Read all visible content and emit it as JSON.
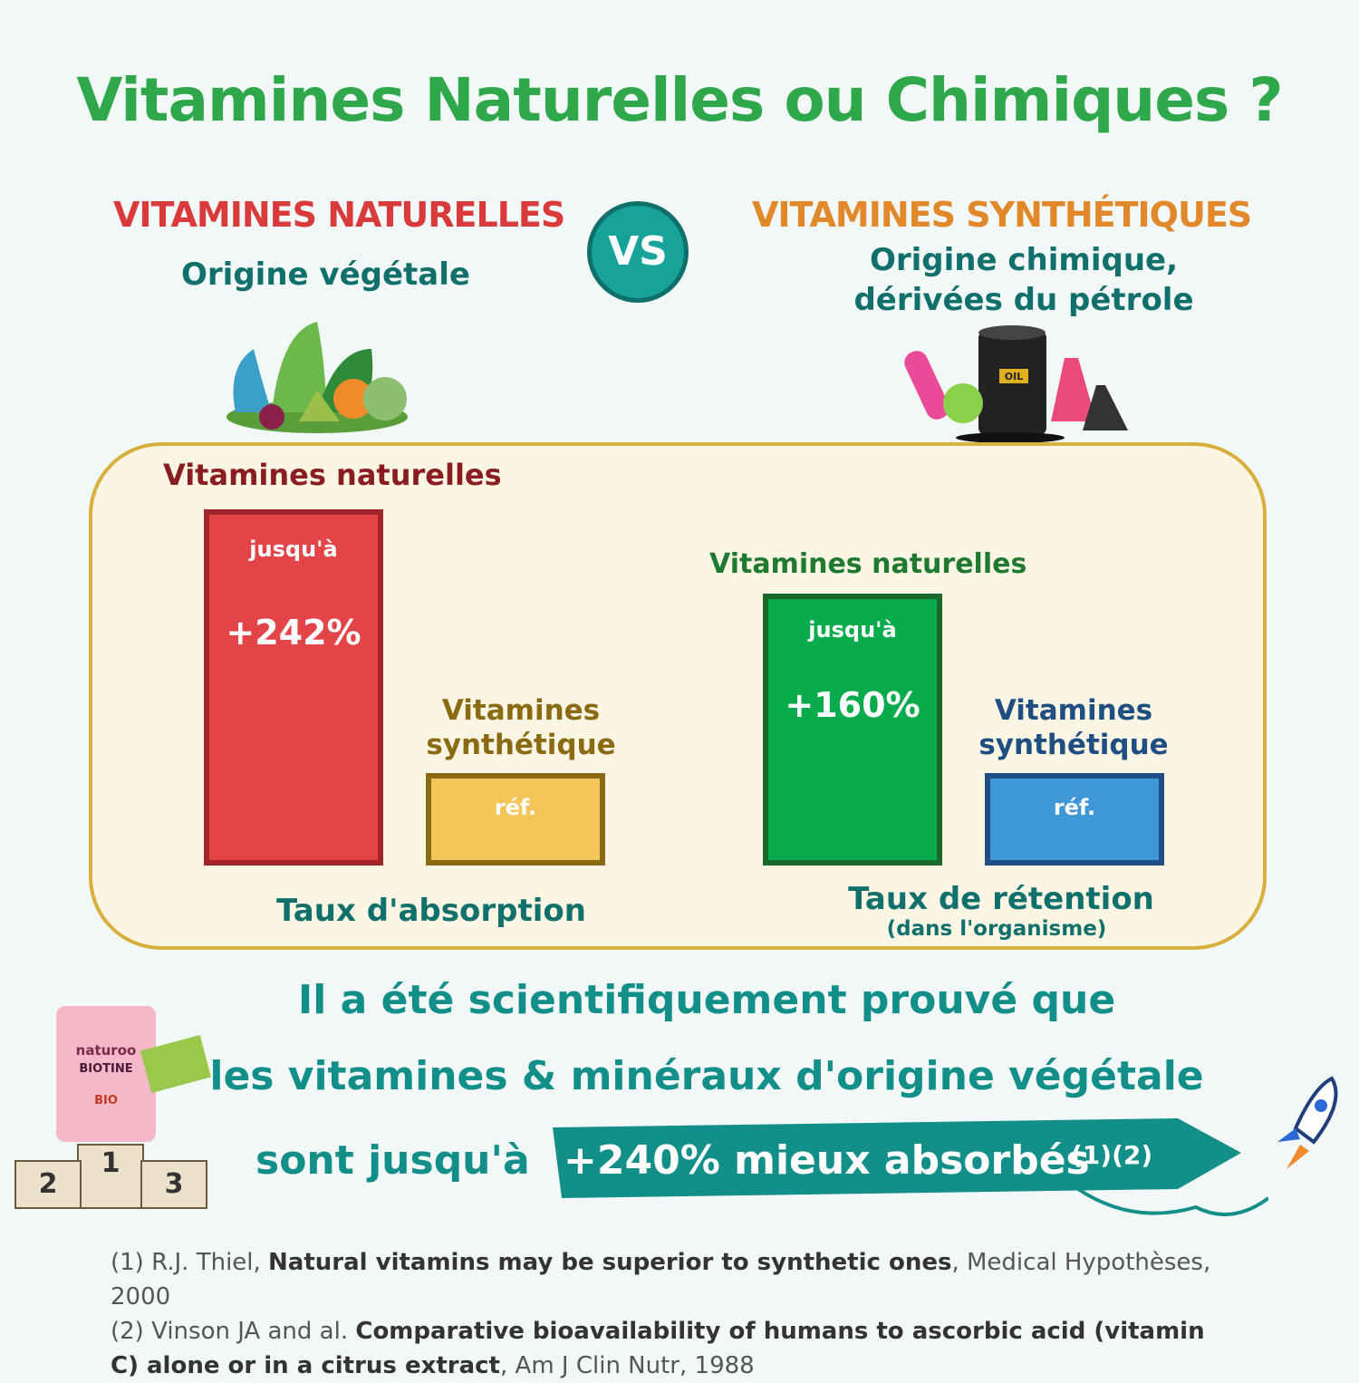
{
  "header": {
    "title": "Vitamines Naturelles ou Chimiques ?"
  },
  "left": {
    "heading": "VITAMINES NATURELLES",
    "subtitle": "Origine végétale"
  },
  "vs": "VS",
  "right": {
    "heading": "VITAMINES SYNTHÉTIQUES",
    "subtitle_lines": [
      "Origine chimique,",
      "dérivées du pétrole"
    ],
    "barrel_label": "OIL"
  },
  "panels": [
    {
      "natural": {
        "label": "Vitamines naturelles",
        "prefix": "jusqu'à",
        "value": "+242%"
      },
      "synthetic": {
        "label_lines": [
          "Vitamines",
          "synthétique"
        ],
        "value": "réf."
      },
      "caption": "Taux d'absorption"
    },
    {
      "natural": {
        "label": "Vitamines naturelles",
        "prefix": "jusqu'à",
        "value": "+160%"
      },
      "synthetic": {
        "label_lines": [
          "Vitamines",
          "synthétique"
        ],
        "value": "réf."
      },
      "caption": "Taux de rétention",
      "note": "(dans l'organisme)"
    }
  ],
  "claim": {
    "lines": [
      "Il a été scientifiquement prouvé que",
      "les vitamines & minéraux d'origine végétale"
    ],
    "lead": "sont jusqu'à",
    "highlight": "+240% mieux absorbés",
    "refs": "(1)(2)"
  },
  "podium": {
    "brand": "naturoo",
    "product": "BIOTINE",
    "bio": "BIO",
    "places": [
      "1",
      "2",
      "3"
    ]
  },
  "references": [
    {
      "number": "(1)",
      "author": "R.J. Thiel,",
      "title": "Natural vitamins may be superior to synthetic ones",
      "source": ", Medical Hypothèses, 2000"
    },
    {
      "number": "(2)",
      "author": "Vinson JA and al.",
      "title": "Comparative bioavailability of humans to ascorbic acid (vitamin C) alone or in a citrus extract",
      "source": ", Am J Clin Nutr, 1988"
    }
  ]
}
